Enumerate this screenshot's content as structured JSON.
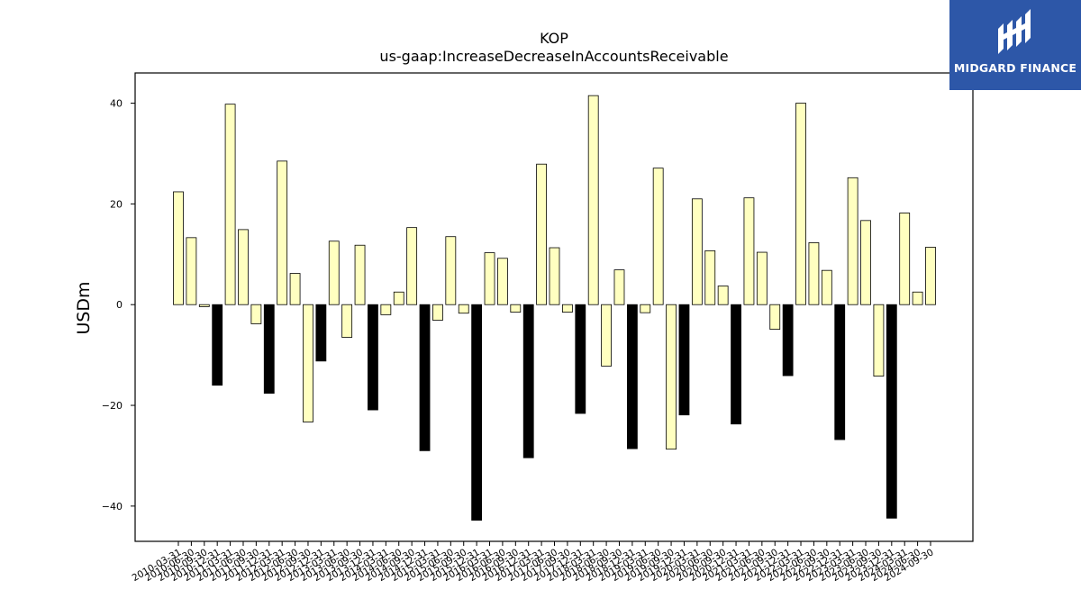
{
  "chart_data": {
    "type": "bar",
    "title": "KOP",
    "subtitle": "us-gaap:IncreaseDecreaseInAccountsReceivable",
    "xlabel": "",
    "ylabel": "USDm",
    "ylim": [
      -47,
      46
    ],
    "yticks": [
      40,
      20,
      0,
      -20,
      -40
    ],
    "ytick_labels": [
      "40",
      "20",
      "0",
      "−20",
      "−40"
    ],
    "grid": false,
    "bar_colors": {
      "default": "#ffffc0",
      "q4": "#000000",
      "edge": "#000000"
    },
    "categories": [
      "2010-03-31",
      "2010-06-30",
      "2010-09-30",
      "2010-12-31",
      "2011-03-31",
      "2011-06-30",
      "2011-09-30",
      "2011-12-31",
      "2012-03-31",
      "2012-06-30",
      "2012-09-30",
      "2012-12-31",
      "2013-03-31",
      "2013-06-30",
      "2013-09-30",
      "2013-12-31",
      "2014-03-31",
      "2014-06-30",
      "2014-09-30",
      "2014-12-31",
      "2015-03-31",
      "2015-06-30",
      "2015-09-30",
      "2015-12-31",
      "2016-03-31",
      "2016-06-30",
      "2016-09-30",
      "2016-12-31",
      "2017-03-31",
      "2017-06-30",
      "2017-09-30",
      "2017-12-31",
      "2018-03-31",
      "2018-06-30",
      "2018-09-30",
      "2018-12-31",
      "2019-03-31",
      "2019-06-30",
      "2019-09-30",
      "2019-12-31",
      "2020-03-31",
      "2020-06-30",
      "2020-09-30",
      "2020-12-31",
      "2021-03-31",
      "2021-06-30",
      "2021-09-30",
      "2021-12-31",
      "2022-03-31",
      "2022-06-30",
      "2022-09-30",
      "2022-12-31",
      "2023-03-31",
      "2023-06-30",
      "2023-09-30",
      "2023-12-31",
      "2024-03-31",
      "2024-06-30",
      "2024-09-30"
    ],
    "values": [
      22.4,
      13.3,
      -0.4,
      -16.0,
      39.8,
      14.9,
      -3.8,
      -17.6,
      28.5,
      6.2,
      -23.3,
      -11.2,
      12.6,
      -6.5,
      11.8,
      -20.9,
      -2.0,
      2.5,
      15.3,
      -29.0,
      -3.1,
      13.5,
      -1.7,
      -42.8,
      10.3,
      9.2,
      -1.5,
      -30.4,
      27.9,
      11.3,
      -1.5,
      -21.6,
      41.5,
      -12.2,
      6.9,
      -28.6,
      -1.6,
      27.1,
      -28.7,
      -21.9,
      21.0,
      10.7,
      3.7,
      -23.7,
      21.2,
      10.4,
      -4.9,
      -14.1,
      40.0,
      12.3,
      6.8,
      -26.8,
      25.2,
      16.7,
      -14.2,
      -42.4,
      18.2,
      2.5,
      11.4
    ]
  },
  "brand": {
    "name": "MIDGARD FINANCE"
  }
}
